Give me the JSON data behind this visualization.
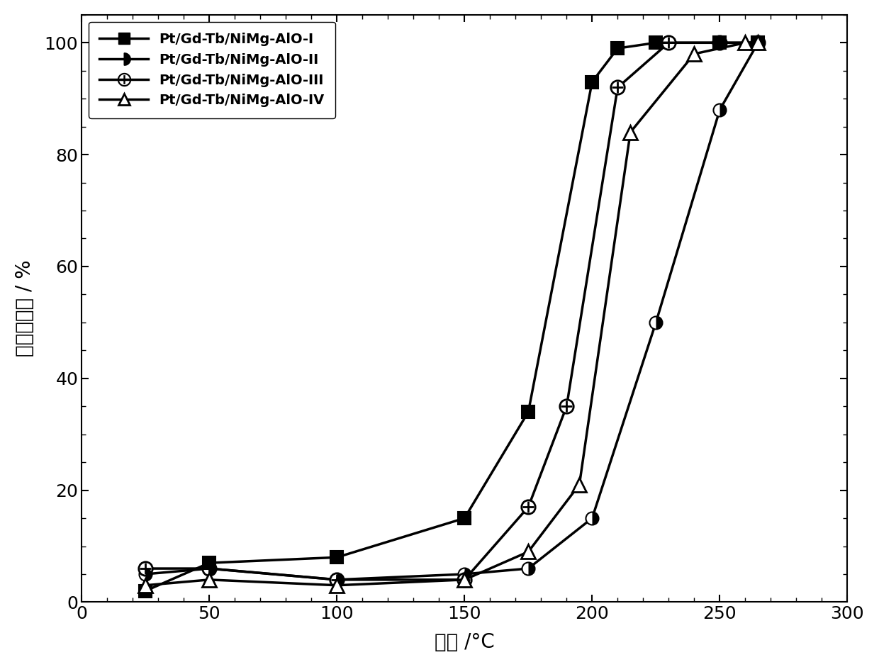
{
  "series": [
    {
      "label": "Pt/Gd-Tb/NiMg-AlO-I",
      "x": [
        25,
        50,
        100,
        150,
        175,
        200,
        210,
        225,
        250,
        265
      ],
      "y": [
        2,
        7,
        8,
        15,
        34,
        93,
        99,
        100,
        100,
        100
      ]
    },
    {
      "label": "Pt/Gd-Tb/NiMg-AlO-II",
      "x": [
        25,
        50,
        100,
        150,
        175,
        200,
        225,
        250,
        265
      ],
      "y": [
        5,
        6,
        4,
        5,
        6,
        15,
        50,
        88,
        100
      ]
    },
    {
      "label": "Pt/Gd-Tb/NiMg-AlO-III",
      "x": [
        25,
        50,
        100,
        150,
        175,
        190,
        210,
        230,
        250,
        265
      ],
      "y": [
        6,
        6,
        4,
        4,
        17,
        35,
        92,
        100,
        100,
        100
      ]
    },
    {
      "label": "Pt/Gd-Tb/NiMg-AlO-IV",
      "x": [
        25,
        50,
        100,
        150,
        175,
        195,
        215,
        240,
        260,
        265
      ],
      "y": [
        3,
        4,
        3,
        4,
        9,
        21,
        84,
        98,
        100,
        100
      ]
    }
  ],
  "xlabel": "温度 /°C",
  "ylabel": "甲苯转化率 / %",
  "xlim": [
    0,
    300
  ],
  "ylim": [
    0,
    105
  ],
  "xticks": [
    0,
    50,
    100,
    150,
    200,
    250,
    300
  ],
  "yticks": [
    0,
    20,
    40,
    60,
    80,
    100
  ],
  "linewidth": 2.5,
  "markersize": 13,
  "font_size": 20,
  "legend_fontsize": 14,
  "tick_labelsize": 18
}
